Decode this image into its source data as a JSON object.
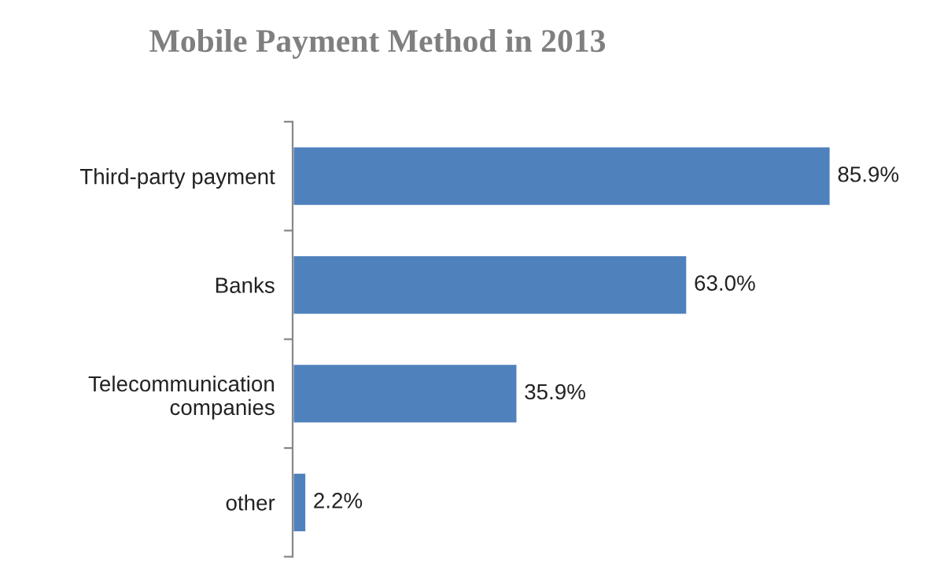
{
  "chart_data": {
    "type": "bar",
    "orientation": "horizontal",
    "title": "Mobile Payment Method in 2013",
    "categories": [
      "Third-party payment",
      "Banks",
      "Telecommunication\ncompanies",
      "other"
    ],
    "values": [
      85.9,
      63.0,
      35.9,
      2.2
    ],
    "value_labels": [
      "85.9%",
      "63.0%",
      "35.9%",
      "2.2%"
    ],
    "color": "#4f81bd",
    "grid": false,
    "legend": false
  }
}
